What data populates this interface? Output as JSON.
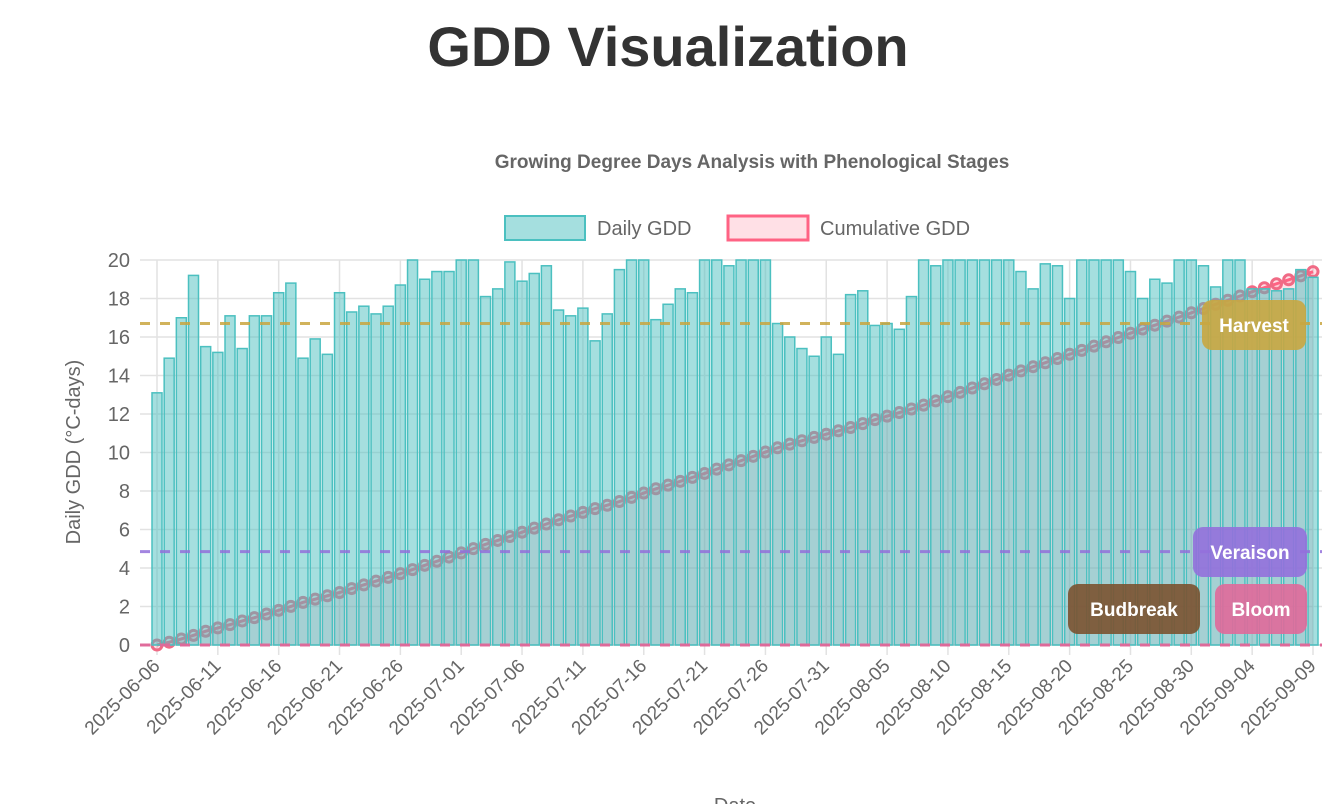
{
  "page": {
    "title": "GDD Visualization"
  },
  "chart_data": {
    "type": "bar",
    "title": "Growing Degree Days Analysis with Phenological Stages",
    "xlabel": "Date",
    "ylabel": "Daily GDD (°C-days)",
    "ylim": [
      0,
      20
    ],
    "yticks": [
      0,
      2,
      4,
      6,
      8,
      10,
      12,
      14,
      16,
      18,
      20
    ],
    "grid": true,
    "legend_position": "top",
    "start_date": "2025-06-06",
    "xtick_labels": [
      "2025-06-06",
      "2025-06-11",
      "2025-06-16",
      "2025-06-21",
      "2025-06-26",
      "2025-07-01",
      "2025-07-06",
      "2025-07-11",
      "2025-07-16",
      "2025-07-21",
      "2025-07-26",
      "2025-07-31",
      "2025-08-05",
      "2025-08-10",
      "2025-08-15",
      "2025-08-20",
      "2025-08-25",
      "2025-08-30",
      "2025-09-04",
      "2025-09-09"
    ],
    "series": [
      {
        "name": "Daily GDD",
        "type": "bar",
        "color": "#4bc0c0",
        "fill": "rgba(75,192,192,0.5)",
        "values": [
          13.1,
          14.9,
          17.0,
          19.2,
          15.5,
          15.2,
          17.1,
          15.4,
          17.1,
          17.1,
          18.3,
          18.8,
          14.9,
          15.9,
          15.1,
          18.3,
          17.3,
          17.6,
          17.2,
          17.6,
          18.7,
          20.0,
          19.0,
          19.4,
          19.4,
          20.0,
          20.0,
          18.1,
          18.5,
          19.9,
          18.9,
          19.3,
          19.7,
          17.4,
          17.1,
          17.5,
          15.8,
          17.2,
          19.5,
          20.0,
          20.0,
          16.9,
          17.7,
          18.5,
          18.3,
          20.0,
          20.0,
          19.7,
          20.0,
          20.0,
          20.0,
          16.7,
          16.0,
          15.4,
          15.0,
          16.0,
          15.1,
          18.2,
          18.4,
          16.6,
          16.7,
          16.4,
          18.1,
          20.0,
          19.7,
          20.0,
          20.0,
          20.0,
          20.0,
          20.0,
          20.0,
          19.4,
          18.5,
          19.8,
          19.7,
          18.0,
          20.0,
          20.0,
          20.0,
          20.0,
          19.4,
          18.0,
          19.0,
          18.8,
          20.0,
          20.0,
          19.7,
          18.6,
          20.0,
          20.0,
          18.5,
          18.5,
          18.4,
          18.5,
          19.5,
          19.1
        ]
      },
      {
        "name": "Cumulative GDD",
        "type": "line",
        "color": "#ff6384",
        "fill": "rgba(255,99,132,0.2)",
        "cumulative_of": "Daily GDD"
      }
    ],
    "stages": [
      {
        "label": "Harvest",
        "y": 16.7,
        "color": "#c9a640"
      },
      {
        "label": "Veraison",
        "y": 4.85,
        "color": "#9370db"
      },
      {
        "label": "Budbreak",
        "y": 0,
        "color": "#7b5230"
      },
      {
        "label": "Bloom",
        "y": 0,
        "color": "#e0699a"
      }
    ]
  }
}
